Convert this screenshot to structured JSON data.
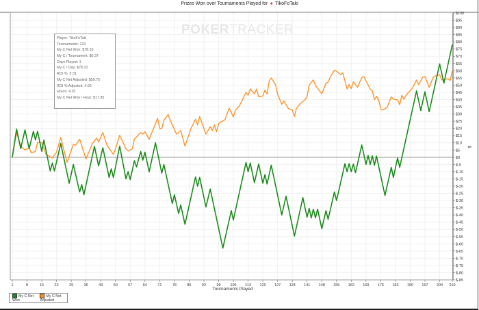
{
  "title": {
    "text": "Prizes Won over Tournaments Played for",
    "player": "TikoFoTaki"
  },
  "watermark": {
    "bold": "POKER",
    "light": "TRACKER"
  },
  "tooltip": [
    "Player: TikoFoTaki",
    "Tournaments: 210",
    "My C Net Won: $78.10",
    "My C / Tournament: $0.37",
    "Days Played: 1",
    "My C / Day: $78.10",
    "ROI %: 5.31",
    "My C Net Adjusted: $59.75",
    "ROI % Adjusted: 4.06",
    "Hours: 4.35",
    "My C Net Won / Hour: $17.95"
  ],
  "chart_data": {
    "type": "line",
    "title": "Prizes Won over Tournaments Played for TikoFoTaki",
    "xlabel": "Tournaments Played",
    "ylabel": "$",
    "xlim": [
      1,
      210
    ],
    "ylim": [
      -85,
      100
    ],
    "grid": true,
    "legend": "bottom-left",
    "xticks": [
      1,
      8,
      15,
      22,
      29,
      36,
      43,
      50,
      57,
      64,
      71,
      78,
      85,
      92,
      99,
      106,
      113,
      120,
      127,
      134,
      141,
      148,
      155,
      162,
      169,
      176,
      183,
      190,
      197,
      204,
      210
    ],
    "ytick_step": 5,
    "series": [
      {
        "name": "My C Net Won",
        "color": "#1a8a1a",
        "points": [
          [
            1,
            0
          ],
          [
            3,
            19.6
          ],
          [
            5,
            6
          ],
          [
            7,
            19
          ],
          [
            9,
            6
          ],
          [
            11,
            18
          ],
          [
            12,
            12
          ],
          [
            13,
            18
          ],
          [
            15,
            4
          ],
          [
            16,
            12
          ],
          [
            19,
            -9.5
          ],
          [
            20,
            -4
          ],
          [
            21,
            -9.5
          ],
          [
            24,
            9.5
          ],
          [
            28,
            -18
          ],
          [
            30,
            -5
          ],
          [
            33,
            -24
          ],
          [
            34,
            -19
          ],
          [
            35,
            -26
          ],
          [
            40,
            7.6
          ],
          [
            42,
            -6
          ],
          [
            44,
            6.6
          ],
          [
            47,
            -14
          ],
          [
            48,
            -8
          ],
          [
            49,
            -14
          ],
          [
            52,
            7.7
          ],
          [
            55,
            -15
          ],
          [
            56,
            -10
          ],
          [
            57,
            -15.5
          ],
          [
            59,
            -2.4
          ],
          [
            60,
            -6.7
          ],
          [
            62,
            4
          ],
          [
            63,
            -2
          ],
          [
            64,
            3.5
          ],
          [
            66,
            -10
          ],
          [
            69,
            10
          ],
          [
            72,
            -11
          ],
          [
            73,
            -5
          ],
          [
            77,
            -32
          ],
          [
            78,
            -26
          ],
          [
            80,
            -39
          ],
          [
            81,
            -33
          ],
          [
            83,
            -46.5
          ],
          [
            88,
            -13.6
          ],
          [
            89,
            -20
          ],
          [
            90,
            -14
          ],
          [
            93,
            -34.5
          ],
          [
            95,
            -22
          ],
          [
            101,
            -63
          ],
          [
            105,
            -37
          ],
          [
            106,
            -43.5
          ],
          [
            112,
            -3.6
          ],
          [
            113,
            -10
          ],
          [
            114,
            -4
          ],
          [
            116,
            -17.6
          ],
          [
            118,
            -4.7
          ],
          [
            120,
            -18
          ],
          [
            121,
            -12
          ],
          [
            122,
            -18.6
          ],
          [
            124,
            -5.5
          ],
          [
            129,
            -40
          ],
          [
            131,
            -27
          ],
          [
            135,
            -54.6
          ],
          [
            139,
            -28
          ],
          [
            141,
            -41.6
          ],
          [
            142,
            -35.5
          ],
          [
            143,
            -42
          ],
          [
            144,
            -36
          ],
          [
            145,
            -42
          ],
          [
            146,
            -36
          ],
          [
            148,
            -49.5
          ],
          [
            150,
            -37
          ],
          [
            151,
            -43
          ],
          [
            154,
            -24
          ],
          [
            155,
            -30
          ],
          [
            159,
            -4.4
          ],
          [
            160,
            -10
          ],
          [
            161,
            -4.4
          ],
          [
            162,
            -10
          ],
          [
            163,
            -4.7
          ],
          [
            164,
            -10.7
          ],
          [
            167,
            8.5
          ],
          [
            169,
            -5
          ],
          [
            170,
            1.3
          ],
          [
            171,
            -5
          ],
          [
            172,
            1
          ],
          [
            173,
            -5.5
          ],
          [
            174,
            0.8
          ],
          [
            178,
            -26.5
          ],
          [
            181,
            -7
          ],
          [
            182,
            -14
          ],
          [
            184,
            -0.5
          ],
          [
            185,
            -7
          ],
          [
            193,
            46
          ],
          [
            195,
            32.4
          ],
          [
            197,
            45.4
          ],
          [
            199,
            31.6
          ],
          [
            204,
            64.7
          ],
          [
            206,
            51.4
          ],
          [
            210,
            78.1
          ]
        ]
      },
      {
        "name": "My C Net Adjusted",
        "color": "#ff8c1a",
        "points": [
          [
            1,
            0
          ],
          [
            3,
            17
          ],
          [
            5,
            7.6
          ],
          [
            7,
            5
          ],
          [
            9,
            6.6
          ],
          [
            10,
            3
          ],
          [
            12,
            4
          ],
          [
            13,
            10.4
          ],
          [
            15,
            10
          ],
          [
            17,
            2
          ],
          [
            20,
            -0.5
          ],
          [
            22,
            3.5
          ],
          [
            24,
            13.7
          ],
          [
            27,
            -3.6
          ],
          [
            30,
            9
          ],
          [
            31,
            8.2
          ],
          [
            33,
            12.5
          ],
          [
            36,
            -1.2
          ],
          [
            39,
            9.4
          ],
          [
            41,
            13.4
          ],
          [
            42,
            10.6
          ],
          [
            44,
            17.2
          ],
          [
            46,
            8.2
          ],
          [
            49,
            2
          ],
          [
            50,
            5.8
          ],
          [
            52,
            15.3
          ],
          [
            55,
            5.8
          ],
          [
            56,
            4.3
          ],
          [
            58,
            5.8
          ],
          [
            59,
            12.6
          ],
          [
            62,
            17.2
          ],
          [
            63,
            16
          ],
          [
            64,
            17.7
          ],
          [
            66,
            12.5
          ],
          [
            70,
            27
          ],
          [
            71,
            20
          ],
          [
            72,
            19.8
          ],
          [
            73,
            25.6
          ],
          [
            75,
            29.6
          ],
          [
            76,
            25.6
          ],
          [
            79,
            16
          ],
          [
            81,
            18.5
          ],
          [
            83,
            7.8
          ],
          [
            86,
            20.4
          ],
          [
            87,
            23.2
          ],
          [
            88,
            26.4
          ],
          [
            89,
            22.4
          ],
          [
            90,
            28.3
          ],
          [
            93,
            16
          ],
          [
            95,
            21.2
          ],
          [
            96,
            18.5
          ],
          [
            97,
            22.4
          ],
          [
            98,
            17.7
          ],
          [
            99,
            23.2
          ],
          [
            100,
            24.5
          ],
          [
            102,
            26
          ],
          [
            104,
            34
          ],
          [
            106,
            28
          ],
          [
            107,
            32.7
          ],
          [
            109,
            36
          ],
          [
            112,
            45
          ],
          [
            113,
            43
          ],
          [
            114,
            47.3
          ],
          [
            116,
            44
          ],
          [
            117,
            47.3
          ],
          [
            118,
            42
          ],
          [
            120,
            42.5
          ],
          [
            121,
            46.6
          ],
          [
            122,
            43.8
          ],
          [
            123,
            52.5
          ],
          [
            124,
            55
          ],
          [
            126,
            50.4
          ],
          [
            127,
            43.8
          ],
          [
            129,
            36.7
          ],
          [
            130,
            39
          ],
          [
            132,
            34
          ],
          [
            134,
            32.7
          ],
          [
            135,
            28.3
          ],
          [
            136,
            34
          ],
          [
            138,
            37.5
          ],
          [
            140,
            39.8
          ],
          [
            141,
            42
          ],
          [
            142,
            50
          ],
          [
            144,
            53.6
          ],
          [
            145,
            49.8
          ],
          [
            146,
            47.8
          ],
          [
            148,
            44
          ],
          [
            150,
            51.4
          ],
          [
            151,
            52
          ],
          [
            152,
            55.6
          ],
          [
            154,
            60.4
          ],
          [
            155,
            59.6
          ],
          [
            157,
            57.2
          ],
          [
            158,
            58.5
          ],
          [
            160,
            47.3
          ],
          [
            161,
            50.4
          ],
          [
            162,
            47.6
          ],
          [
            163,
            52.3
          ],
          [
            165,
            48.5
          ],
          [
            167,
            55.2
          ],
          [
            168,
            56
          ],
          [
            169,
            53
          ],
          [
            171,
            47.3
          ],
          [
            172,
            46
          ],
          [
            173,
            40
          ],
          [
            174,
            42.2
          ],
          [
            175,
            39.8
          ],
          [
            176,
            33.5
          ],
          [
            177,
            32.7
          ],
          [
            179,
            34.6
          ],
          [
            181,
            41.9
          ],
          [
            182,
            40.3
          ],
          [
            184,
            39.8
          ],
          [
            185,
            36.4
          ],
          [
            186,
            43
          ],
          [
            187,
            40.2
          ],
          [
            188,
            43
          ],
          [
            191,
            47.8
          ],
          [
            193,
            53.6
          ],
          [
            194,
            50.4
          ],
          [
            196,
            55.6
          ],
          [
            197,
            56
          ],
          [
            199,
            48.5
          ],
          [
            201,
            55.6
          ],
          [
            202,
            56.4
          ],
          [
            204,
            57.2
          ],
          [
            205,
            53.6
          ],
          [
            208,
            54.4
          ],
          [
            209,
            53.2
          ],
          [
            210,
            59.75
          ]
        ]
      }
    ]
  }
}
